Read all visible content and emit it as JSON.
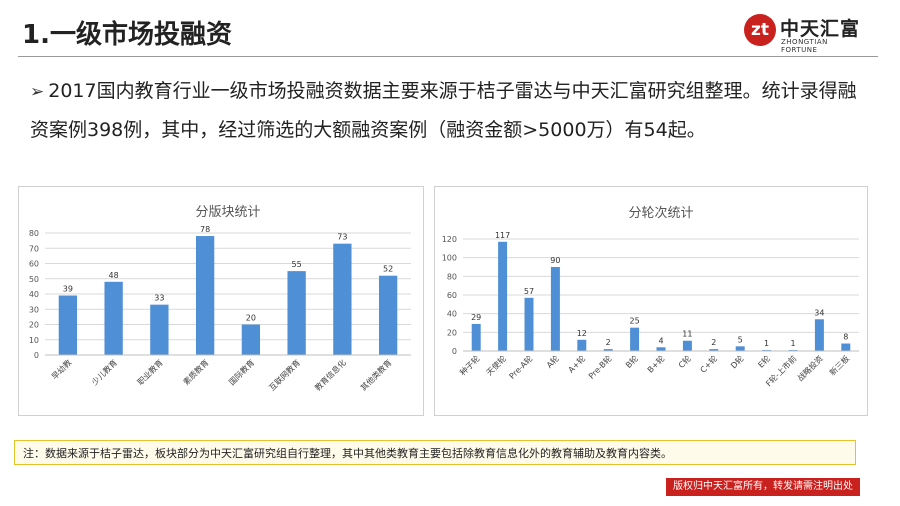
{
  "header": {
    "title": "1.一级市场投融资",
    "logo_cn": "中天汇富",
    "logo_en": "ZHONGTIAN FORTUNE",
    "logo_mark": "zt"
  },
  "content": {
    "bullet": "➢",
    "paragraph": "2017国内教育行业一级市场投融资数据主要来源于桔子雷达与中天汇富研究组整理。统计录得融资案例398例，其中，经过筛选的大额融资案例（融资金额>5000万）有54起。"
  },
  "chart_data": [
    {
      "type": "bar",
      "title": "分版块统计",
      "categories": [
        "早幼教",
        "少儿教育",
        "职业教育",
        "素质教育",
        "国际教育",
        "互联网教育",
        "教育信息化",
        "其他类教育"
      ],
      "values": [
        39,
        48,
        33,
        78,
        20,
        55,
        73,
        52
      ],
      "ylim": [
        0,
        80
      ],
      "yticks": [
        0,
        10,
        20,
        30,
        40,
        50,
        60,
        70,
        80
      ],
      "grid": true,
      "bar_color": "#4e8fd6"
    },
    {
      "type": "bar",
      "title": "分轮次统计",
      "categories": [
        "种子轮",
        "天使轮",
        "Pre-A轮",
        "A轮",
        "A+轮",
        "Pre-B轮",
        "B轮",
        "B+轮",
        "C轮",
        "C+轮",
        "D轮",
        "E轮",
        "F轮-上市前",
        "战略投资",
        "新三板"
      ],
      "values": [
        29,
        117,
        57,
        90,
        12,
        2,
        25,
        4,
        11,
        2,
        5,
        1,
        1,
        34,
        8
      ],
      "ylim": [
        0,
        120
      ],
      "yticks": [
        0,
        20,
        40,
        60,
        80,
        100,
        120
      ],
      "grid": true,
      "bar_color": "#4e8fd6"
    }
  ],
  "note": "注：数据来源于桔子雷达，板块部分为中天汇富研究组自行整理，其中其他类教育主要包括除教育信息化外的教育辅助及教育内容类。",
  "footer": "版权归中天汇富所有，转发请需注明出处"
}
